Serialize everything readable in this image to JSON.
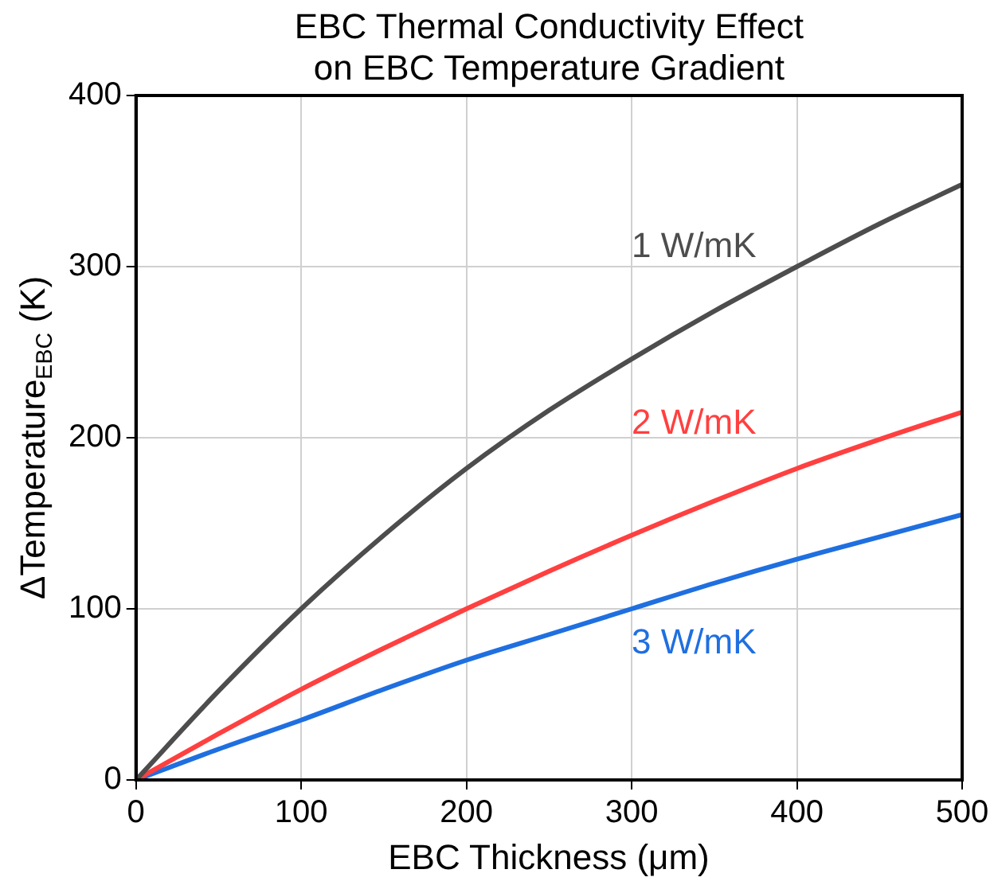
{
  "chart_data": {
    "type": "line",
    "title": "EBC Thermal Conductivity Effect\non EBC Temperature Gradient",
    "xlabel": "EBC Thickness (μm)",
    "ylabel": "ΔTemperature$_{EBC}$ (K)",
    "x": [
      0,
      50,
      100,
      150,
      200,
      250,
      300,
      350,
      400,
      450,
      500
    ],
    "series": [
      {
        "name": "1 W/mK",
        "color": "#4d4d4d",
        "values": [
          0,
          52,
          100,
          143,
          182,
          216,
          246,
          274,
          300,
          325,
          348
        ]
      },
      {
        "name": "2 W/mK",
        "color": "#ff4040",
        "values": [
          0,
          27,
          53,
          77,
          100,
          122,
          143,
          163,
          182,
          199,
          215
        ]
      },
      {
        "name": "3 W/mK",
        "color": "#1f6fe0",
        "values": [
          0,
          18,
          35,
          53,
          70,
          85,
          100,
          115,
          129,
          142,
          155
        ]
      }
    ],
    "xlim": [
      0,
      500
    ],
    "xticks": [
      0,
      100,
      200,
      300,
      400,
      500
    ],
    "ylim": [
      0,
      400
    ],
    "yticks": [
      0,
      100,
      200,
      300,
      400
    ],
    "grid": true,
    "marker": "none",
    "line_style": "solid",
    "legend": false
  }
}
